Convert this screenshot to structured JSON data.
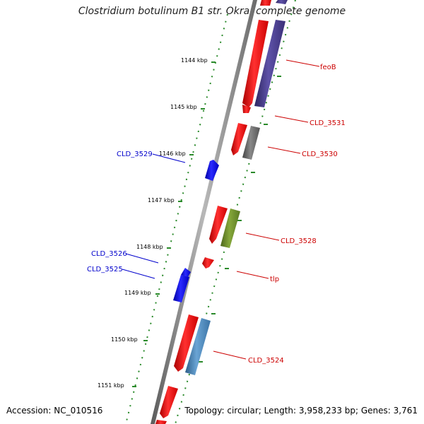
{
  "title": "Clostridium botulinum B1 str. Okra, complete genome",
  "footer": {
    "accession": "Accession: NC_010516",
    "topology": "Topology: circular; Length: 3,958,233 bp; Genes: 3,761"
  },
  "scale_labels": [
    "1144 kbp",
    "1145 kbp",
    "1146 kbp",
    "1147 kbp",
    "1148 kbp",
    "1149 kbp",
    "1150 kbp",
    "1151 kbp"
  ],
  "gene_labels": {
    "reverse": [
      "CLD_3529",
      "CLD_3526",
      "CLD_3525"
    ],
    "forward": [
      "feoB",
      "CLD_3531",
      "CLD_3530",
      "CLD_3528",
      "tlp",
      "CLD_3524"
    ]
  },
  "colors": {
    "forward_label": "#cc0000",
    "reverse_label": "#0000cc",
    "cds": "#ff0000",
    "reverse_cds": "#0000ee",
    "feoB": "#4a3f8c",
    "CLD_3530": "#6b6b6b",
    "CLD_3528": "#6b8a2a",
    "CLD_3524": "#4a86b8",
    "tick": "#2a8a2a",
    "backbone": "#808080"
  }
}
